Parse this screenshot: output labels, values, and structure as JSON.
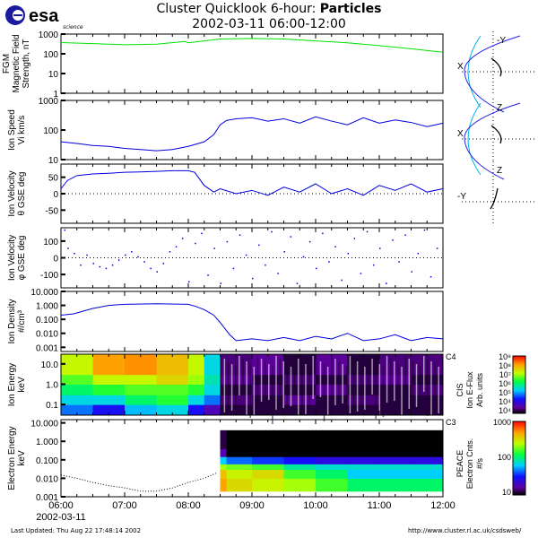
{
  "header": {
    "logo": "esa",
    "logo_sub": "science",
    "title_prefix": "Cluster Quicklook 6-hour: ",
    "title_bold": "Particles",
    "subtitle": "2002-03-11 06:00-12:00"
  },
  "footer": {
    "updated": "Last Updated:  Thu Aug 22 17:48:14 2002",
    "url": "http://www.cluster.rl.ac.uk/csdsweb/"
  },
  "orbit": {
    "p1": {
      "h": "X",
      "v": "-Y"
    },
    "p2": {
      "h": "X",
      "v": "Z"
    },
    "p3": {
      "h": "-Y",
      "v": "Z"
    }
  },
  "colors": {
    "fgm": "#00e000",
    "ion": "#0000e0",
    "orbit_mp": "#00b0f0",
    "orbit_bs": "#2020e0"
  },
  "chart_data": [
    {
      "type": "line",
      "id": "fgm",
      "ylabel": [
        "FGM",
        "Magnetic Field",
        "Strength, nT"
      ],
      "yscale": "log",
      "ylim": [
        1,
        1000
      ],
      "ticks": [
        "1000",
        "100",
        "10",
        "1"
      ],
      "tickvals": [
        1000,
        100,
        10,
        1
      ],
      "x": [
        6,
        6.5,
        7,
        7.5,
        7.95,
        8,
        8.5,
        9,
        9.5,
        10,
        10.5,
        11,
        11.5,
        12
      ],
      "y": [
        370,
        330,
        290,
        310,
        420,
        360,
        560,
        600,
        560,
        450,
        360,
        260,
        180,
        120
      ]
    },
    {
      "type": "line",
      "id": "speed",
      "ylabel": [
        "Ion Speed",
        "Vi km/s"
      ],
      "yscale": "log",
      "ylim": [
        10,
        1000
      ],
      "ticks": [
        "1000",
        "100",
        "10"
      ],
      "tickvals": [
        1000,
        100,
        10
      ],
      "x": [
        6,
        6.25,
        6.5,
        6.75,
        7,
        7.25,
        7.5,
        7.75,
        8,
        8.25,
        8.4,
        8.5,
        8.6,
        8.75,
        9,
        9.25,
        9.5,
        9.75,
        10,
        10.25,
        10.5,
        10.75,
        11,
        11.25,
        11.5,
        11.75,
        12
      ],
      "y": [
        40,
        35,
        30,
        28,
        24,
        22,
        20,
        22,
        28,
        40,
        70,
        150,
        210,
        240,
        260,
        200,
        240,
        170,
        280,
        200,
        150,
        260,
        170,
        220,
        180,
        130,
        170
      ]
    },
    {
      "type": "line",
      "id": "theta",
      "ylabel": [
        "Ion Velocity",
        "θ GSE deg"
      ],
      "ylim": [
        -90,
        90
      ],
      "ticks": [
        "50",
        "0",
        "-50"
      ],
      "tickvals": [
        50,
        0,
        -50
      ],
      "ref": 0,
      "x": [
        6,
        6.1,
        6.25,
        6.5,
        6.75,
        7,
        7.25,
        7.5,
        7.75,
        8,
        8.1,
        8.25,
        8.4,
        8.5,
        8.75,
        9,
        9.25,
        9.5,
        9.75,
        10,
        10.25,
        10.5,
        10.75,
        11,
        11.25,
        11.5,
        11.75,
        12
      ],
      "y": [
        15,
        40,
        55,
        60,
        62,
        65,
        66,
        68,
        70,
        70,
        65,
        25,
        5,
        15,
        0,
        10,
        -5,
        20,
        5,
        30,
        0,
        15,
        -5,
        25,
        10,
        30,
        5,
        15
      ]
    },
    {
      "type": "scatter",
      "id": "phi",
      "ylabel": [
        "Ion Velocity",
        "φ GSE deg"
      ],
      "ylim": [
        -180,
        180
      ],
      "ticks": [
        "100",
        "0",
        "-100"
      ],
      "tickvals": [
        100,
        0,
        -100
      ],
      "ref": 0,
      "x": [
        6.05,
        6.1,
        6.2,
        6.3,
        6.4,
        6.5,
        6.6,
        6.7,
        6.8,
        6.9,
        7,
        7.1,
        7.2,
        7.3,
        7.4,
        7.5,
        7.6,
        7.7,
        7.8,
        7.9,
        8,
        8.1,
        8.2,
        8.3,
        8.4,
        8.5,
        8.6,
        8.7,
        8.8,
        8.9,
        9,
        9.1,
        9.2,
        9.3,
        9.4,
        9.5,
        9.6,
        9.7,
        9.8,
        9.9,
        10,
        10.1,
        10.2,
        10.3,
        10.4,
        10.5,
        10.6,
        10.7,
        10.8,
        10.9,
        11,
        11.1,
        11.2,
        11.3,
        11.4,
        11.5,
        11.6,
        11.7,
        11.8,
        11.9
      ],
      "y": [
        170,
        60,
        30,
        -40,
        20,
        -30,
        -50,
        -60,
        -40,
        -10,
        20,
        40,
        10,
        -20,
        -60,
        -80,
        -30,
        40,
        70,
        120,
        -140,
        90,
        150,
        -100,
        60,
        -150,
        100,
        -60,
        140,
        20,
        -120,
        80,
        -40,
        160,
        -90,
        40,
        130,
        -150,
        10,
        100,
        -60,
        150,
        -20,
        70,
        -130,
        30,
        120,
        -90,
        160,
        -40,
        60,
        -150,
        110,
        -20,
        140,
        -80,
        30,
        170,
        -110,
        60
      ]
    },
    {
      "type": "line",
      "id": "density",
      "ylabel": [
        "Ion Density",
        "#/cm³"
      ],
      "yscale": "log",
      "ylim": [
        0.0005,
        10
      ],
      "ticks": [
        "10.000",
        "1.000",
        "0.100",
        "0.010",
        "0.001"
      ],
      "tickvals": [
        10,
        1,
        0.1,
        0.01,
        0.001
      ],
      "x": [
        6,
        6.2,
        6.5,
        6.75,
        7,
        7.5,
        8,
        8.1,
        8.25,
        8.4,
        8.5,
        8.65,
        8.75,
        9,
        9.25,
        9.5,
        9.75,
        10,
        10.25,
        10.5,
        10.75,
        11,
        11.25,
        11.5,
        11.75,
        12
      ],
      "y": [
        0.2,
        0.25,
        0.6,
        1.0,
        1.2,
        1.3,
        1.2,
        0.9,
        0.5,
        0.2,
        0.06,
        0.008,
        0.003,
        0.004,
        0.003,
        0.005,
        0.003,
        0.006,
        0.004,
        0.01,
        0.003,
        0.004,
        0.008,
        0.003,
        0.005,
        0.004
      ]
    },
    {
      "type": "heatmap",
      "id": "ion",
      "label": "C4",
      "ylabel": [
        "Ion Energy",
        "keV"
      ],
      "yscale": "log",
      "ylim": [
        0.03,
        30
      ],
      "ticks": [
        "10.0",
        "1.0",
        "0.1"
      ],
      "tickvals": [
        10,
        1,
        0.1
      ],
      "x_edges": [
        6,
        6.5,
        7,
        7.5,
        8,
        8.25,
        8.5,
        9,
        9.5,
        10,
        10.5,
        11,
        11.5,
        12
      ],
      "e_edges": [
        0.03,
        0.1,
        0.3,
        1,
        3,
        30
      ],
      "z_log": [
        [
          5.5,
          5,
          5.8,
          6,
          5,
          4.5,
          4,
          4,
          4,
          4,
          4,
          4,
          4
        ],
        [
          6,
          6,
          6.5,
          6.8,
          6,
          5.5,
          4.2,
          4,
          4.3,
          4,
          4.2,
          4,
          4
        ],
        [
          6.5,
          6.8,
          7,
          7,
          6.8,
          6,
          4,
          4.2,
          4,
          4.3,
          4,
          4,
          4.2
        ],
        [
          7,
          7.5,
          7.5,
          7.8,
          7.3,
          6.2,
          4.3,
          4,
          4.2,
          4,
          4.2,
          4.3,
          4
        ],
        [
          7.5,
          8.2,
          8.3,
          8,
          7.5,
          6,
          4.2,
          4.3,
          4,
          4.3,
          4,
          4.2,
          4.2
        ]
      ],
      "colorbar": {
        "title": [
          "CIS",
          "Ion E-Flux",
          "Arb. units"
        ],
        "ticks": [
          "10⁹",
          "10⁸",
          "10⁷",
          "10⁶",
          "10⁵",
          "10⁴",
          "10⁴"
        ],
        "range_log": [
          3.8,
          9
        ]
      }
    },
    {
      "type": "heatmap",
      "id": "electron",
      "label": "C3",
      "ylabel": [
        "Electron Energy",
        "keV"
      ],
      "yscale": "log",
      "ylim": [
        0.001,
        15
      ],
      "ticks": [
        "10.000",
        "1.000",
        "0.100",
        "0.010",
        "0.001"
      ],
      "tickvals": [
        10,
        1,
        0.1,
        0.01,
        0.001
      ],
      "x_edges": [
        8.5,
        8.6,
        9,
        9.5,
        10,
        10.5,
        11,
        11.5,
        12
      ],
      "e_edges": [
        0.002,
        0.01,
        0.03,
        0.06,
        0.15,
        0.4,
        4
      ],
      "z_log": [
        [
          2.6,
          2.4,
          2.3,
          2.2,
          2.0,
          1.8,
          1.8,
          1.8
        ],
        [
          2.5,
          2.3,
          2.4,
          2.0,
          1.8,
          1.5,
          1.5,
          1.5
        ],
        [
          2.2,
          2.1,
          2.0,
          1.7,
          1.6,
          1.6,
          1.6,
          1.6
        ],
        [
          1.5,
          1.3,
          1.2,
          1.1,
          1.0,
          1.0,
          1.0,
          1.0
        ],
        [
          0.8,
          0.5,
          0.4,
          0.4,
          0.4,
          0.4,
          0.4,
          0.4
        ],
        [
          0.6,
          0.3,
          0.3,
          0.3,
          0.3,
          0.3,
          0.3,
          0.3
        ]
      ],
      "line": {
        "x": [
          6,
          6.25,
          6.5,
          6.75,
          7,
          7.25,
          7.5,
          7.75,
          8,
          8.25,
          8.45
        ],
        "y": [
          0.015,
          0.01,
          0.006,
          0.004,
          0.003,
          0.002,
          0.002,
          0.003,
          0.006,
          0.01,
          0.02
        ]
      },
      "colorbar": {
        "title": [
          "PEACE",
          "Electron Cnts.",
          "#/s"
        ],
        "ticks": [
          "1000",
          "100",
          "10"
        ],
        "range_log": [
          0.5,
          3
        ]
      }
    }
  ],
  "xaxis": {
    "ticks": [
      "06:00",
      "07:00",
      "08:00",
      "09:00",
      "10:00",
      "11:00",
      "12:00"
    ],
    "date": "2002-03-11",
    "xlim": [
      6,
      12
    ]
  }
}
